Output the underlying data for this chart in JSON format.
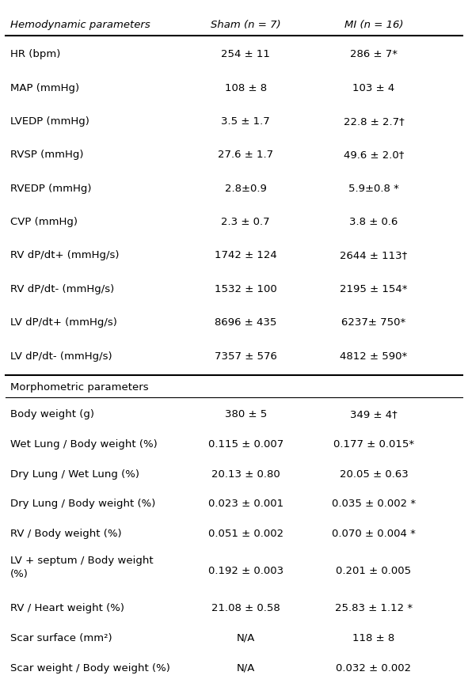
{
  "col_headers": [
    "Hemodynamic parameters",
    "Sham (n = 7)",
    "MI (n = 16)"
  ],
  "hemo_rows": [
    [
      "HR (bpm)",
      "254 ± 11",
      "286 ± 7*"
    ],
    [
      "MAP (mmHg)",
      "108 ± 8",
      "103 ± 4"
    ],
    [
      "LVEDP (mmHg)",
      "3.5 ± 1.7",
      "22.8 ± 2.7†"
    ],
    [
      "RVSP (mmHg)",
      "27.6 ± 1.7",
      "49.6 ± 2.0†"
    ],
    [
      "RVEDP (mmHg)",
      "2.8±0.9",
      "5.9±0.8 *"
    ],
    [
      "CVP (mmHg)",
      "2.3 ± 0.7",
      "3.8 ± 0.6"
    ],
    [
      "RV dP/dt+ (mmHg/s)",
      "1742 ± 124",
      "2644 ± 113†"
    ],
    [
      "RV dP/dt- (mmHg/s)",
      "1532 ± 100",
      "2195 ± 154*"
    ],
    [
      "LV dP/dt+ (mmHg/s)",
      "8696 ± 435",
      "6237± 750*"
    ],
    [
      "LV dP/dt- (mmHg/s)",
      "7357 ± 576",
      "4812 ± 590*"
    ]
  ],
  "morpho_section_label": "Morphometric parameters",
  "morpho_rows": [
    [
      "Body weight (g)",
      "380 ± 5",
      "349 ± 4†"
    ],
    [
      "Wet Lung / Body weight (%)",
      "0.115 ± 0.007",
      "0.177 ± 0.015*"
    ],
    [
      "Dry Lung / Wet Lung (%)",
      "20.13 ± 0.80",
      "20.05 ± 0.63"
    ],
    [
      "Dry Lung / Body weight (%)",
      "0.023 ± 0.001",
      "0.035 ± 0.002 *"
    ],
    [
      "RV / Body weight (%)",
      "0.051 ± 0.002",
      "0.070 ± 0.004 *"
    ],
    [
      "LV + septum / Body weight\n(%)",
      "0.192 ± 0.003",
      "0.201 ± 0.005"
    ],
    [
      "RV / Heart weight (%)",
      "21.08 ± 0.58",
      "25.83 ± 1.12 *"
    ],
    [
      "Scar surface (mm²)",
      "N/A",
      "118 ± 8"
    ],
    [
      "Scar weight / Body weight (%)",
      "N/A",
      "0.032 ± 0.002"
    ]
  ],
  "bg_color": "#ffffff",
  "text_color": "#000000",
  "line_color": "#000000",
  "font_size": 9.5
}
